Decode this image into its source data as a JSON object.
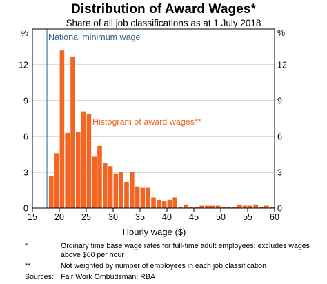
{
  "chart_data": {
    "type": "bar",
    "title": "Distribution of Award Wages*",
    "subtitle": "Share of all job classifications as at 1 July 2018",
    "xlabel": "Hourly wage ($)",
    "left_unit": "%",
    "right_unit": "%",
    "xlim": [
      15,
      60
    ],
    "ylim": [
      0,
      15
    ],
    "x_ticks": [
      15,
      20,
      25,
      30,
      35,
      40,
      45,
      50,
      55,
      60
    ],
    "y_ticks": [
      0,
      3,
      6,
      9,
      12
    ],
    "grid": true,
    "bar_color": "#F26522",
    "reference_line": {
      "x": 17.7,
      "label": "National minimum wage",
      "color": "#2E5F8A"
    },
    "series_annotation": "Histogram of award wages**",
    "bins": [
      {
        "x": 18,
        "value": 2.7
      },
      {
        "x": 19,
        "value": 4.6
      },
      {
        "x": 20,
        "value": 13.2
      },
      {
        "x": 21,
        "value": 6.3
      },
      {
        "x": 22,
        "value": 12.7
      },
      {
        "x": 23,
        "value": 6.4
      },
      {
        "x": 24,
        "value": 8.1
      },
      {
        "x": 25,
        "value": 7.9
      },
      {
        "x": 26,
        "value": 4.3
      },
      {
        "x": 27,
        "value": 5.2
      },
      {
        "x": 28,
        "value": 3.8
      },
      {
        "x": 29,
        "value": 3.5
      },
      {
        "x": 30,
        "value": 2.9
      },
      {
        "x": 31,
        "value": 3.0
      },
      {
        "x": 32,
        "value": 2.2
      },
      {
        "x": 33,
        "value": 3.0
      },
      {
        "x": 34,
        "value": 1.8
      },
      {
        "x": 35,
        "value": 1.7
      },
      {
        "x": 36,
        "value": 1.7
      },
      {
        "x": 37,
        "value": 0.9
      },
      {
        "x": 38,
        "value": 0.7
      },
      {
        "x": 39,
        "value": 0.6
      },
      {
        "x": 40,
        "value": 0.7
      },
      {
        "x": 41,
        "value": 0.9
      },
      {
        "x": 42,
        "value": 0.1
      },
      {
        "x": 43,
        "value": 0.3
      },
      {
        "x": 44,
        "value": 0.1
      },
      {
        "x": 45,
        "value": 0.1
      },
      {
        "x": 46,
        "value": 0.2
      },
      {
        "x": 47,
        "value": 0.2
      },
      {
        "x": 48,
        "value": 0.2
      },
      {
        "x": 49,
        "value": 0.2
      },
      {
        "x": 50,
        "value": 0.1
      },
      {
        "x": 51,
        "value": 0.1
      },
      {
        "x": 52,
        "value": 0.1
      },
      {
        "x": 53,
        "value": 0.3
      },
      {
        "x": 54,
        "value": 0.2
      },
      {
        "x": 55,
        "value": 0.2
      },
      {
        "x": 56,
        "value": 0.3
      },
      {
        "x": 57,
        "value": 0.1
      },
      {
        "x": 58,
        "value": 0.2
      },
      {
        "x": 59,
        "value": 0.1
      }
    ]
  },
  "notes": [
    {
      "mark": "*",
      "text": "Ordinary time base wage rates for full-time adult employees; excludes wages above $60 per hour"
    },
    {
      "mark": "**",
      "text": "Not weighted by number of employees in each job classification"
    }
  ],
  "sources": {
    "label": "Sources:",
    "text": "Fair Work Ombudsman; RBA"
  }
}
